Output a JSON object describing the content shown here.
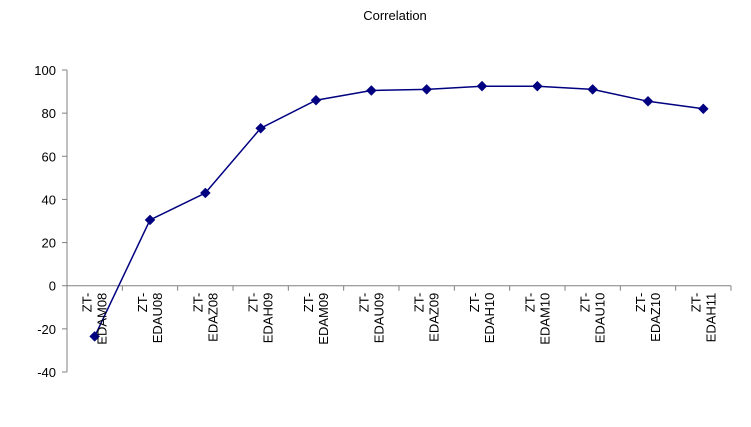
{
  "chart_data": {
    "type": "line",
    "title": "Correlation",
    "xlabel": "",
    "ylabel": "",
    "ylim": [
      -40,
      100
    ],
    "yticks": [
      -40,
      -20,
      0,
      20,
      40,
      60,
      80,
      100
    ],
    "grid": false,
    "legend": "none",
    "categories": [
      "ZT-EDAM08",
      "ZT-EDAU08",
      "ZT-EDAZ08",
      "ZT-EDAH09",
      "ZT-EDAM09",
      "ZT-EDAU09",
      "ZT-EDAZ09",
      "ZT-EDAH10",
      "ZT-EDAM10",
      "ZT-EDAU10",
      "ZT-EDAZ10",
      "ZT-EDAH11"
    ],
    "category_lines": [
      [
        "ZT-",
        "EDAM08"
      ],
      [
        "ZT-",
        "EDAU08"
      ],
      [
        "ZT-",
        "EDAZ08"
      ],
      [
        "ZT-",
        "EDAH09"
      ],
      [
        "ZT-",
        "EDAM09"
      ],
      [
        "ZT-",
        "EDAU09"
      ],
      [
        "ZT-",
        "EDAZ09"
      ],
      [
        "ZT-",
        "EDAH10"
      ],
      [
        "ZT-",
        "EDAM10"
      ],
      [
        "ZT-",
        "EDAU10"
      ],
      [
        "ZT-",
        "EDAZ10"
      ],
      [
        "ZT-",
        "EDAH11"
      ]
    ],
    "series": [
      {
        "values": [
          -23.5,
          30.5,
          43,
          73,
          86,
          90.5,
          91,
          92.5,
          92.5,
          91,
          85.5,
          82
        ],
        "color": "#000080",
        "marker": "diamond"
      }
    ],
    "axis_color": "#808080"
  }
}
